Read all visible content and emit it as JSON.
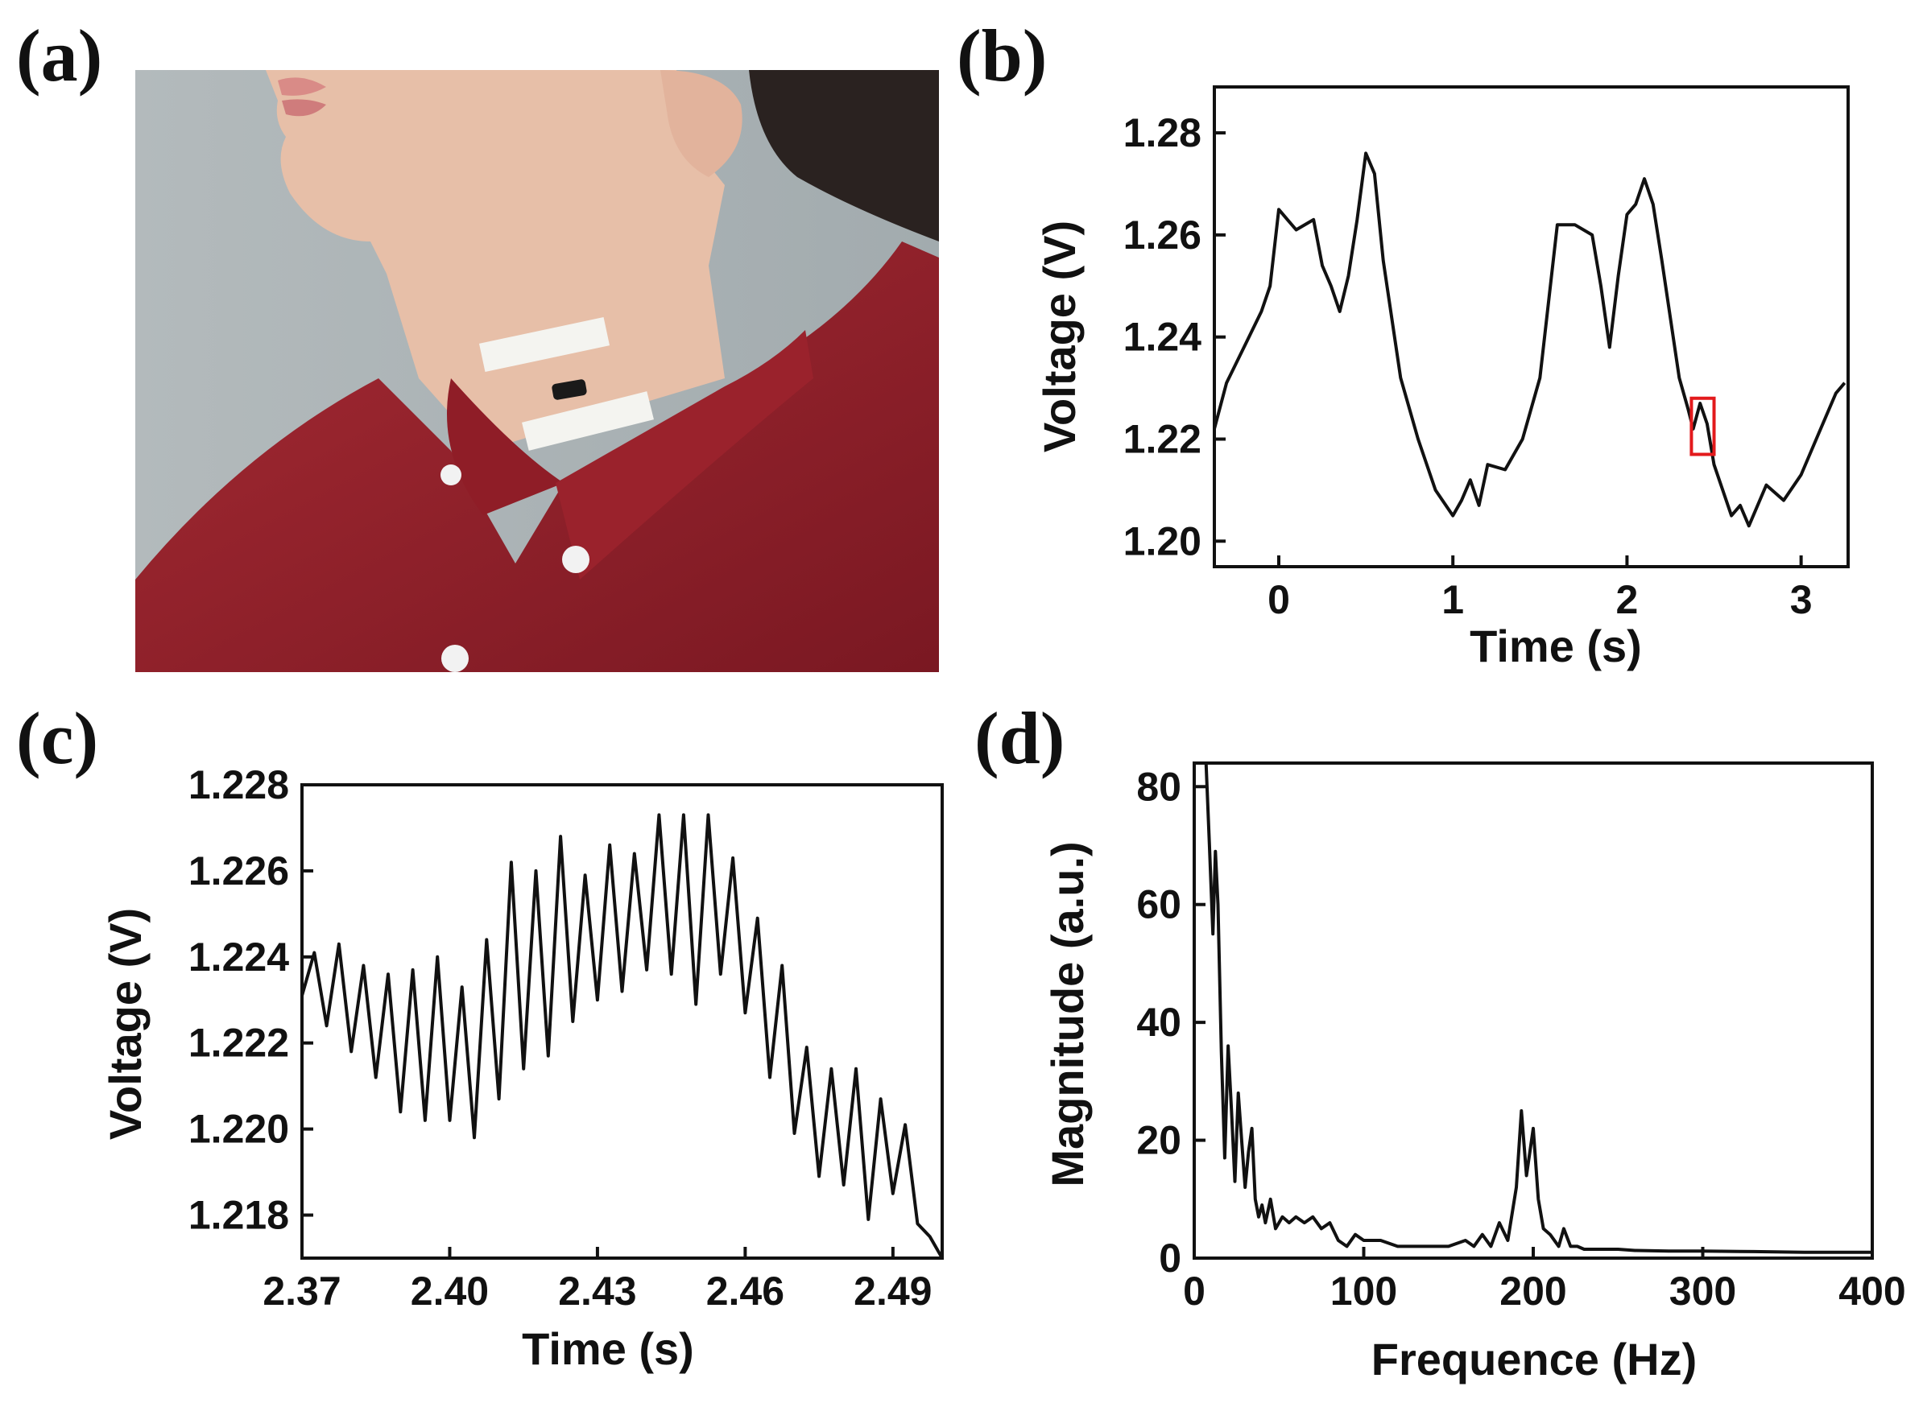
{
  "panels": {
    "a": {
      "label": "(a)"
    },
    "b": {
      "label": "(b)"
    },
    "c": {
      "label": "(c)"
    },
    "d": {
      "label": "(d)"
    }
  },
  "photo": {
    "subject": "person-wearing-red-shirt-with-throat-sensor",
    "colors": {
      "background": "#a9b2b4",
      "shirt": "#8e1f2a",
      "skin": "#e6bea6",
      "tape": "#f4f4f0",
      "sensor": "#1a1a1a"
    }
  },
  "chart_data": [
    {
      "panel": "b",
      "type": "line",
      "xlabel": "Time (s)",
      "ylabel": "Voltage (V)",
      "xlim": [
        -0.37,
        3.27
      ],
      "ylim": [
        1.195,
        1.289
      ],
      "xticks": [
        0,
        1,
        2,
        3
      ],
      "yticks": [
        1.2,
        1.22,
        1.24,
        1.26,
        1.28
      ],
      "xtick_labels": [
        "0",
        "1",
        "2",
        "3"
      ],
      "ytick_labels": [
        "1.20",
        "1.22",
        "1.24",
        "1.26",
        "1.28"
      ],
      "x": [
        -0.37,
        -0.3,
        -0.2,
        -0.1,
        -0.05,
        0.0,
        0.05,
        0.1,
        0.2,
        0.25,
        0.3,
        0.35,
        0.4,
        0.45,
        0.5,
        0.55,
        0.6,
        0.7,
        0.8,
        0.9,
        1.0,
        1.05,
        1.1,
        1.15,
        1.2,
        1.3,
        1.4,
        1.5,
        1.6,
        1.65,
        1.7,
        1.8,
        1.85,
        1.9,
        1.95,
        2.0,
        2.05,
        2.1,
        2.15,
        2.2,
        2.3,
        2.35,
        2.38,
        2.42,
        2.46,
        2.5,
        2.55,
        2.6,
        2.65,
        2.7,
        2.8,
        2.9,
        3.0,
        3.1,
        3.2,
        3.25
      ],
      "values": [
        1.222,
        1.231,
        1.238,
        1.245,
        1.25,
        1.265,
        1.263,
        1.261,
        1.263,
        1.254,
        1.25,
        1.245,
        1.252,
        1.263,
        1.276,
        1.272,
        1.255,
        1.232,
        1.22,
        1.21,
        1.205,
        1.208,
        1.212,
        1.207,
        1.215,
        1.214,
        1.22,
        1.232,
        1.262,
        1.262,
        1.262,
        1.26,
        1.25,
        1.238,
        1.252,
        1.264,
        1.266,
        1.271,
        1.266,
        1.255,
        1.232,
        1.226,
        1.222,
        1.227,
        1.223,
        1.215,
        1.21,
        1.205,
        1.207,
        1.203,
        1.211,
        1.208,
        1.213,
        1.221,
        1.229,
        1.231
      ],
      "highlight": {
        "x_range": [
          2.37,
          2.5
        ],
        "y_range": [
          1.217,
          1.228
        ],
        "color": "#e31a1c"
      }
    },
    {
      "panel": "c",
      "type": "line",
      "xlabel": "Time (s)",
      "ylabel": "Voltage (V)",
      "xlim": [
        2.37,
        2.5
      ],
      "ylim": [
        1.217,
        1.228
      ],
      "xticks": [
        2.37,
        2.4,
        2.43,
        2.46,
        2.49
      ],
      "yticks": [
        1.218,
        1.22,
        1.222,
        1.224,
        1.226,
        1.228
      ],
      "xtick_labels": [
        "2.37",
        "2.40",
        "2.43",
        "2.46",
        "2.49"
      ],
      "ytick_labels": [
        "1.218",
        "1.220",
        "1.222",
        "1.224",
        "1.226",
        "1.228"
      ],
      "x": [
        2.37,
        2.3725,
        2.375,
        2.3775,
        2.38,
        2.3825,
        2.385,
        2.3875,
        2.39,
        2.3925,
        2.395,
        2.3975,
        2.4,
        2.4025,
        2.405,
        2.4075,
        2.41,
        2.4125,
        2.415,
        2.4175,
        2.42,
        2.4225,
        2.425,
        2.4275,
        2.43,
        2.4325,
        2.435,
        2.4375,
        2.44,
        2.4425,
        2.445,
        2.4475,
        2.45,
        2.4525,
        2.455,
        2.4575,
        2.46,
        2.4625,
        2.465,
        2.4675,
        2.47,
        2.4725,
        2.475,
        2.4775,
        2.48,
        2.4825,
        2.485,
        2.4875,
        2.49,
        2.4925,
        2.495,
        2.4975,
        2.5
      ],
      "values": [
        1.2231,
        1.2241,
        1.2224,
        1.2243,
        1.2218,
        1.2238,
        1.2212,
        1.2236,
        1.2204,
        1.2237,
        1.2202,
        1.224,
        1.2202,
        1.2233,
        1.2198,
        1.2244,
        1.2207,
        1.2262,
        1.2214,
        1.226,
        1.2217,
        1.2268,
        1.2225,
        1.2259,
        1.223,
        1.2266,
        1.2232,
        1.2264,
        1.2237,
        1.2273,
        1.2236,
        1.2273,
        1.2229,
        1.2273,
        1.2236,
        1.2263,
        1.2227,
        1.2249,
        1.2212,
        1.2238,
        1.2199,
        1.2219,
        1.2189,
        1.2214,
        1.2187,
        1.2214,
        1.2179,
        1.2207,
        1.2185,
        1.2201,
        1.2178,
        1.2175,
        1.217
      ]
    },
    {
      "panel": "d",
      "type": "line",
      "xlabel": "Frequence (Hz)",
      "ylabel": "Magnitude (a.u.)",
      "xlim": [
        0,
        400
      ],
      "ylim": [
        0,
        84
      ],
      "xticks": [
        0,
        100,
        200,
        300,
        400
      ],
      "yticks": [
        0,
        20,
        40,
        60,
        80
      ],
      "xtick_labels": [
        "0",
        "100",
        "200",
        "300",
        "400"
      ],
      "ytick_labels": [
        "0",
        "20",
        "40",
        "60",
        "80"
      ],
      "x": [
        7,
        9,
        11,
        12.5,
        14,
        16,
        18,
        20,
        22,
        24,
        26,
        28,
        30,
        32,
        34,
        36,
        38,
        40,
        42,
        45,
        48,
        52,
        56,
        60,
        65,
        70,
        75,
        80,
        85,
        90,
        95,
        100,
        110,
        120,
        130,
        140,
        150,
        160,
        165,
        170,
        175,
        180,
        185,
        190,
        193,
        196,
        200,
        203,
        206,
        210,
        215,
        218,
        222,
        226,
        230,
        240,
        250,
        260,
        280,
        300,
        330,
        360,
        400
      ],
      "values": [
        84,
        70,
        55,
        69,
        60,
        35,
        17,
        36,
        25,
        13,
        28,
        20,
        12,
        18,
        22,
        10,
        7,
        9,
        6,
        10,
        5,
        7,
        6,
        7,
        6,
        7,
        5,
        6,
        3,
        2,
        4,
        3,
        3,
        2,
        2,
        2,
        2,
        3,
        2,
        4,
        2,
        6,
        3,
        12,
        25,
        14,
        22,
        10,
        5,
        4,
        2,
        5,
        2,
        2,
        1.5,
        1.5,
        1.5,
        1.3,
        1.2,
        1.2,
        1.1,
        1,
        1
      ]
    }
  ]
}
